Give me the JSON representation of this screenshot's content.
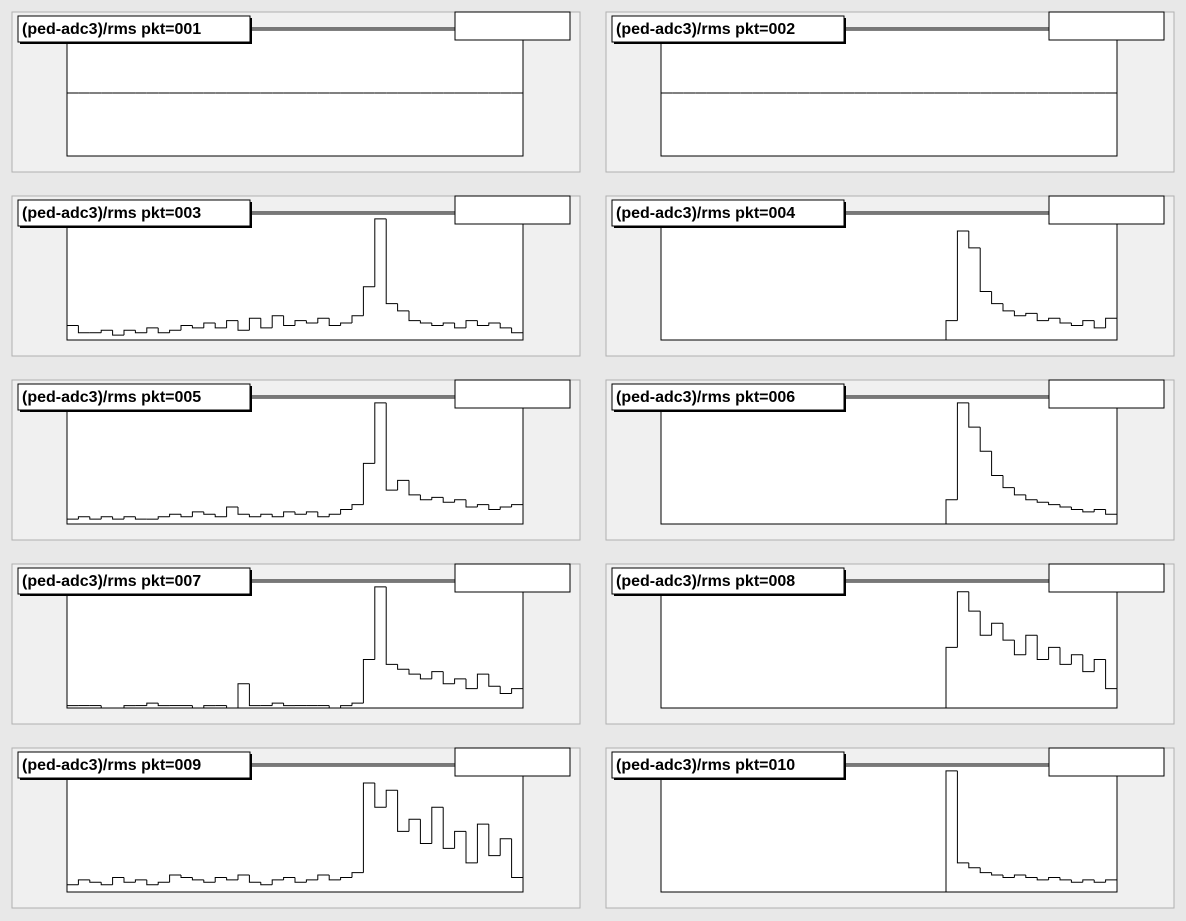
{
  "chart_data": [
    {
      "type": "histogram",
      "title": "(ped-adc3)/rms pkt=001",
      "color": "#000000",
      "xlim": [
        0,
        40
      ],
      "ylim": [
        0,
        2
      ],
      "bins": [
        0,
        1,
        2,
        3,
        4,
        5,
        6,
        7,
        8,
        9,
        10,
        11,
        12,
        13,
        14,
        15,
        16,
        17,
        18,
        19,
        20,
        21,
        22,
        23,
        24,
        25,
        26,
        27,
        28,
        29,
        30,
        31,
        32,
        33,
        34,
        35,
        36,
        37,
        38,
        39,
        40
      ],
      "values": [
        1,
        1,
        1,
        1,
        1,
        1,
        1,
        1,
        1,
        1,
        1,
        1,
        1,
        1,
        1,
        1,
        1,
        1,
        1,
        1,
        1,
        1,
        1,
        1,
        1,
        1,
        1,
        1,
        1,
        1,
        1,
        1,
        1,
        1,
        1,
        1,
        1,
        1,
        1,
        1
      ]
    },
    {
      "type": "histogram",
      "title": "(ped-adc3)/rms pkt=002",
      "color": "#000000",
      "xlim": [
        0,
        40
      ],
      "ylim": [
        0,
        2
      ],
      "bins": [
        0,
        1,
        2,
        3,
        4,
        5,
        6,
        7,
        8,
        9,
        10,
        11,
        12,
        13,
        14,
        15,
        16,
        17,
        18,
        19,
        20,
        21,
        22,
        23,
        24,
        25,
        26,
        27,
        28,
        29,
        30,
        31,
        32,
        33,
        34,
        35,
        36,
        37,
        38,
        39,
        40
      ],
      "values": [
        1,
        1,
        1,
        1,
        1,
        1,
        1,
        1,
        1,
        1,
        1,
        1,
        1,
        1,
        1,
        1,
        1,
        1,
        1,
        1,
        1,
        1,
        1,
        1,
        1,
        1,
        1,
        1,
        1,
        1,
        1,
        1,
        1,
        1,
        1,
        1,
        1,
        1,
        1,
        1
      ]
    },
    {
      "type": "histogram",
      "title": "(ped-adc3)/rms pkt=003",
      "color": "#000000",
      "xlim": [
        0,
        40
      ],
      "ylim": [
        0,
        52
      ],
      "bins": [
        0,
        1,
        2,
        3,
        4,
        5,
        6,
        7,
        8,
        9,
        10,
        11,
        12,
        13,
        14,
        15,
        16,
        17,
        18,
        19,
        20,
        21,
        22,
        23,
        24,
        25,
        26,
        27,
        28,
        29,
        30,
        31,
        32,
        33,
        34,
        35,
        36,
        37,
        38,
        39,
        40
      ],
      "values": [
        6,
        3,
        3,
        4,
        2,
        4,
        3,
        5,
        3,
        4,
        6,
        5,
        7,
        5,
        8,
        4,
        9,
        5,
        10,
        6,
        8,
        7,
        9,
        6,
        7,
        10,
        22,
        50,
        15,
        12,
        8,
        7,
        6,
        7,
        5,
        8,
        6,
        7,
        5,
        3
      ]
    },
    {
      "type": "histogram",
      "title": "(ped-adc3)/rms pkt=004",
      "color": "#000000",
      "xlim": [
        0,
        40
      ],
      "ylim": [
        0,
        52
      ],
      "bins": [
        0,
        1,
        2,
        3,
        4,
        5,
        6,
        7,
        8,
        9,
        10,
        11,
        12,
        13,
        14,
        15,
        16,
        17,
        18,
        19,
        20,
        21,
        22,
        23,
        24,
        25,
        26,
        27,
        28,
        29,
        30,
        31,
        32,
        33,
        34,
        35,
        36,
        37,
        38,
        39,
        40
      ],
      "values": [
        0,
        0,
        0,
        0,
        0,
        0,
        0,
        0,
        0,
        0,
        0,
        0,
        0,
        0,
        0,
        0,
        0,
        0,
        0,
        0,
        0,
        0,
        0,
        0,
        0,
        8,
        45,
        38,
        20,
        15,
        12,
        10,
        11,
        8,
        9,
        7,
        6,
        8,
        5,
        9
      ]
    },
    {
      "type": "histogram",
      "title": "(ped-adc3)/rms pkt=005",
      "color": "#000000",
      "xlim": [
        0,
        40
      ],
      "ylim": [
        0,
        52
      ],
      "bins": [
        0,
        1,
        2,
        3,
        4,
        5,
        6,
        7,
        8,
        9,
        10,
        11,
        12,
        13,
        14,
        15,
        16,
        17,
        18,
        19,
        20,
        21,
        22,
        23,
        24,
        25,
        26,
        27,
        28,
        29,
        30,
        31,
        32,
        33,
        34,
        35,
        36,
        37,
        38,
        39,
        40
      ],
      "values": [
        2,
        3,
        2,
        3,
        2,
        3,
        2,
        2,
        3,
        4,
        3,
        5,
        4,
        3,
        7,
        4,
        3,
        4,
        3,
        5,
        4,
        5,
        3,
        4,
        6,
        8,
        25,
        50,
        14,
        18,
        12,
        10,
        11,
        9,
        10,
        7,
        8,
        6,
        7,
        8
      ]
    },
    {
      "type": "histogram",
      "title": "(ped-adc3)/rms pkt=006",
      "color": "#000000",
      "xlim": [
        0,
        40
      ],
      "ylim": [
        0,
        52
      ],
      "bins": [
        0,
        1,
        2,
        3,
        4,
        5,
        6,
        7,
        8,
        9,
        10,
        11,
        12,
        13,
        14,
        15,
        16,
        17,
        18,
        19,
        20,
        21,
        22,
        23,
        24,
        25,
        26,
        27,
        28,
        29,
        30,
        31,
        32,
        33,
        34,
        35,
        36,
        37,
        38,
        39,
        40
      ],
      "values": [
        0,
        0,
        0,
        0,
        0,
        0,
        0,
        0,
        0,
        0,
        0,
        0,
        0,
        0,
        0,
        0,
        0,
        0,
        0,
        0,
        0,
        0,
        0,
        0,
        0,
        10,
        50,
        40,
        30,
        20,
        15,
        12,
        10,
        9,
        8,
        7,
        6,
        5,
        6,
        4
      ]
    },
    {
      "type": "histogram",
      "title": "(ped-adc3)/rms pkt=007",
      "color": "#000000",
      "xlim": [
        0,
        40
      ],
      "ylim": [
        0,
        52
      ],
      "bins": [
        0,
        1,
        2,
        3,
        4,
        5,
        6,
        7,
        8,
        9,
        10,
        11,
        12,
        13,
        14,
        15,
        16,
        17,
        18,
        19,
        20,
        21,
        22,
        23,
        24,
        25,
        26,
        27,
        28,
        29,
        30,
        31,
        32,
        33,
        34,
        35,
        36,
        37,
        38,
        39,
        40
      ],
      "values": [
        1,
        1,
        1,
        0,
        0,
        1,
        1,
        2,
        1,
        1,
        1,
        0,
        1,
        1,
        0,
        10,
        1,
        1,
        2,
        1,
        1,
        1,
        1,
        0,
        1,
        2,
        20,
        50,
        18,
        16,
        14,
        12,
        15,
        10,
        12,
        8,
        14,
        9,
        6,
        8
      ]
    },
    {
      "type": "histogram",
      "title": "(ped-adc3)/rms pkt=008",
      "color": "#000000",
      "xlim": [
        0,
        40
      ],
      "ylim": [
        0,
        52
      ],
      "bins": [
        0,
        1,
        2,
        3,
        4,
        5,
        6,
        7,
        8,
        9,
        10,
        11,
        12,
        13,
        14,
        15,
        16,
        17,
        18,
        19,
        20,
        21,
        22,
        23,
        24,
        25,
        26,
        27,
        28,
        29,
        30,
        31,
        32,
        33,
        34,
        35,
        36,
        37,
        38,
        39,
        40
      ],
      "values": [
        0,
        0,
        0,
        0,
        0,
        0,
        0,
        0,
        0,
        0,
        0,
        0,
        0,
        0,
        0,
        0,
        0,
        0,
        0,
        0,
        0,
        0,
        0,
        0,
        0,
        25,
        48,
        40,
        30,
        35,
        28,
        22,
        30,
        20,
        25,
        18,
        22,
        15,
        20,
        8
      ]
    },
    {
      "type": "histogram",
      "title": "(ped-adc3)/rms pkt=009",
      "color": "#000000",
      "xlim": [
        0,
        40
      ],
      "ylim": [
        0,
        52
      ],
      "bins": [
        0,
        1,
        2,
        3,
        4,
        5,
        6,
        7,
        8,
        9,
        10,
        11,
        12,
        13,
        14,
        15,
        16,
        17,
        18,
        19,
        20,
        21,
        22,
        23,
        24,
        25,
        26,
        27,
        28,
        29,
        30,
        31,
        32,
        33,
        34,
        35,
        36,
        37,
        38,
        39,
        40
      ],
      "values": [
        3,
        5,
        4,
        3,
        6,
        4,
        5,
        3,
        4,
        7,
        6,
        5,
        4,
        6,
        5,
        7,
        4,
        3,
        5,
        6,
        4,
        5,
        7,
        5,
        6,
        8,
        45,
        35,
        42,
        25,
        30,
        20,
        35,
        18,
        25,
        12,
        28,
        15,
        22,
        6
      ]
    },
    {
      "type": "histogram",
      "title": "(ped-adc3)/rms pkt=010",
      "color": "#000000",
      "xlim": [
        0,
        40
      ],
      "ylim": [
        0,
        52
      ],
      "bins": [
        0,
        1,
        2,
        3,
        4,
        5,
        6,
        7,
        8,
        9,
        10,
        11,
        12,
        13,
        14,
        15,
        16,
        17,
        18,
        19,
        20,
        21,
        22,
        23,
        24,
        25,
        26,
        27,
        28,
        29,
        30,
        31,
        32,
        33,
        34,
        35,
        36,
        37,
        38,
        39,
        40
      ],
      "values": [
        0,
        0,
        0,
        0,
        0,
        0,
        0,
        0,
        0,
        0,
        0,
        0,
        0,
        0,
        0,
        0,
        0,
        0,
        0,
        0,
        0,
        0,
        0,
        0,
        0,
        50,
        12,
        10,
        8,
        7,
        6,
        7,
        6,
        5,
        6,
        5,
        4,
        5,
        4,
        5
      ]
    }
  ]
}
